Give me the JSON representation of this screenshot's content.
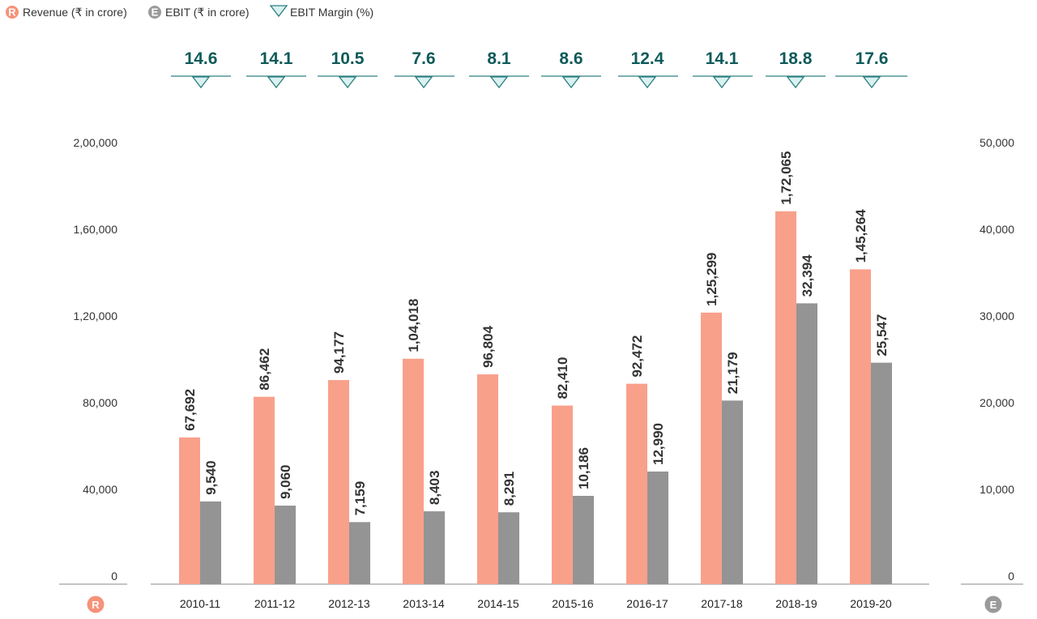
{
  "legend": {
    "revenue": {
      "badge": "R",
      "label": "Revenue (₹ in crore)"
    },
    "ebit": {
      "badge": "E",
      "label": "EBIT (₹ in crore)"
    },
    "margin": {
      "label": "EBIT Margin (%)"
    }
  },
  "axis_badges": {
    "left": "R",
    "right": "E"
  },
  "colors": {
    "revenue": "#F9A08B",
    "revenue_badge": "#F7927A",
    "ebit": "#949494",
    "ebit_badge": "#9A9A9A",
    "margin_text": "#0E5A5A",
    "margin_marker_fill": "#D9F1F1",
    "margin_marker_stroke": "#2E7F7F",
    "axis_line": "#888888"
  },
  "chart_data": {
    "type": "bar",
    "categories": [
      "2010-11",
      "2011-12",
      "2012-13",
      "2013-14",
      "2014-15",
      "2015-16",
      "2016-17",
      "2017-18",
      "2018-19",
      "2019-20"
    ],
    "series": [
      {
        "name": "Revenue (₹ in crore)",
        "axis": "left",
        "values": [
          67692,
          86462,
          94177,
          104018,
          96804,
          82410,
          92472,
          125299,
          172065,
          145264
        ],
        "labels": [
          "67,692",
          "86,462",
          "94,177",
          "1,04,018",
          "96,804",
          "82,410",
          "92,472",
          "1,25,299",
          "1,72,065",
          "1,45,264"
        ]
      },
      {
        "name": "EBIT (₹ in crore)",
        "axis": "right",
        "values": [
          9540,
          9060,
          7159,
          8403,
          8291,
          10186,
          12990,
          21179,
          32394,
          25547
        ],
        "labels": [
          "9,540",
          "9,060",
          "7,159",
          "8,403",
          "8,291",
          "10,186",
          "12,990",
          "21,179",
          "32,394",
          "25,547"
        ]
      },
      {
        "name": "EBIT Margin (%)",
        "type": "marker",
        "values": [
          14.6,
          14.1,
          10.5,
          7.6,
          8.1,
          8.6,
          12.4,
          14.1,
          18.8,
          17.6
        ],
        "labels": [
          "14.6",
          "14.1",
          "10.5",
          "7.6",
          "8.1",
          "8.6",
          "12.4",
          "14.1",
          "18.8",
          "17.6"
        ]
      }
    ],
    "left_axis": {
      "ylim": [
        0,
        200000
      ],
      "ticks": [
        0,
        40000,
        80000,
        120000,
        160000,
        200000
      ],
      "tick_labels": [
        "0",
        "40,000",
        "80,000",
        "1,20,000",
        "1,60,000",
        "2,00,000"
      ]
    },
    "right_axis": {
      "ylim": [
        0,
        50000
      ],
      "ticks": [
        0,
        10000,
        20000,
        30000,
        40000,
        50000
      ],
      "tick_labels": [
        "0",
        "10,000",
        "20,000",
        "30,000",
        "40,000",
        "50,000"
      ]
    },
    "grid": false,
    "legend_position": "top-left"
  }
}
